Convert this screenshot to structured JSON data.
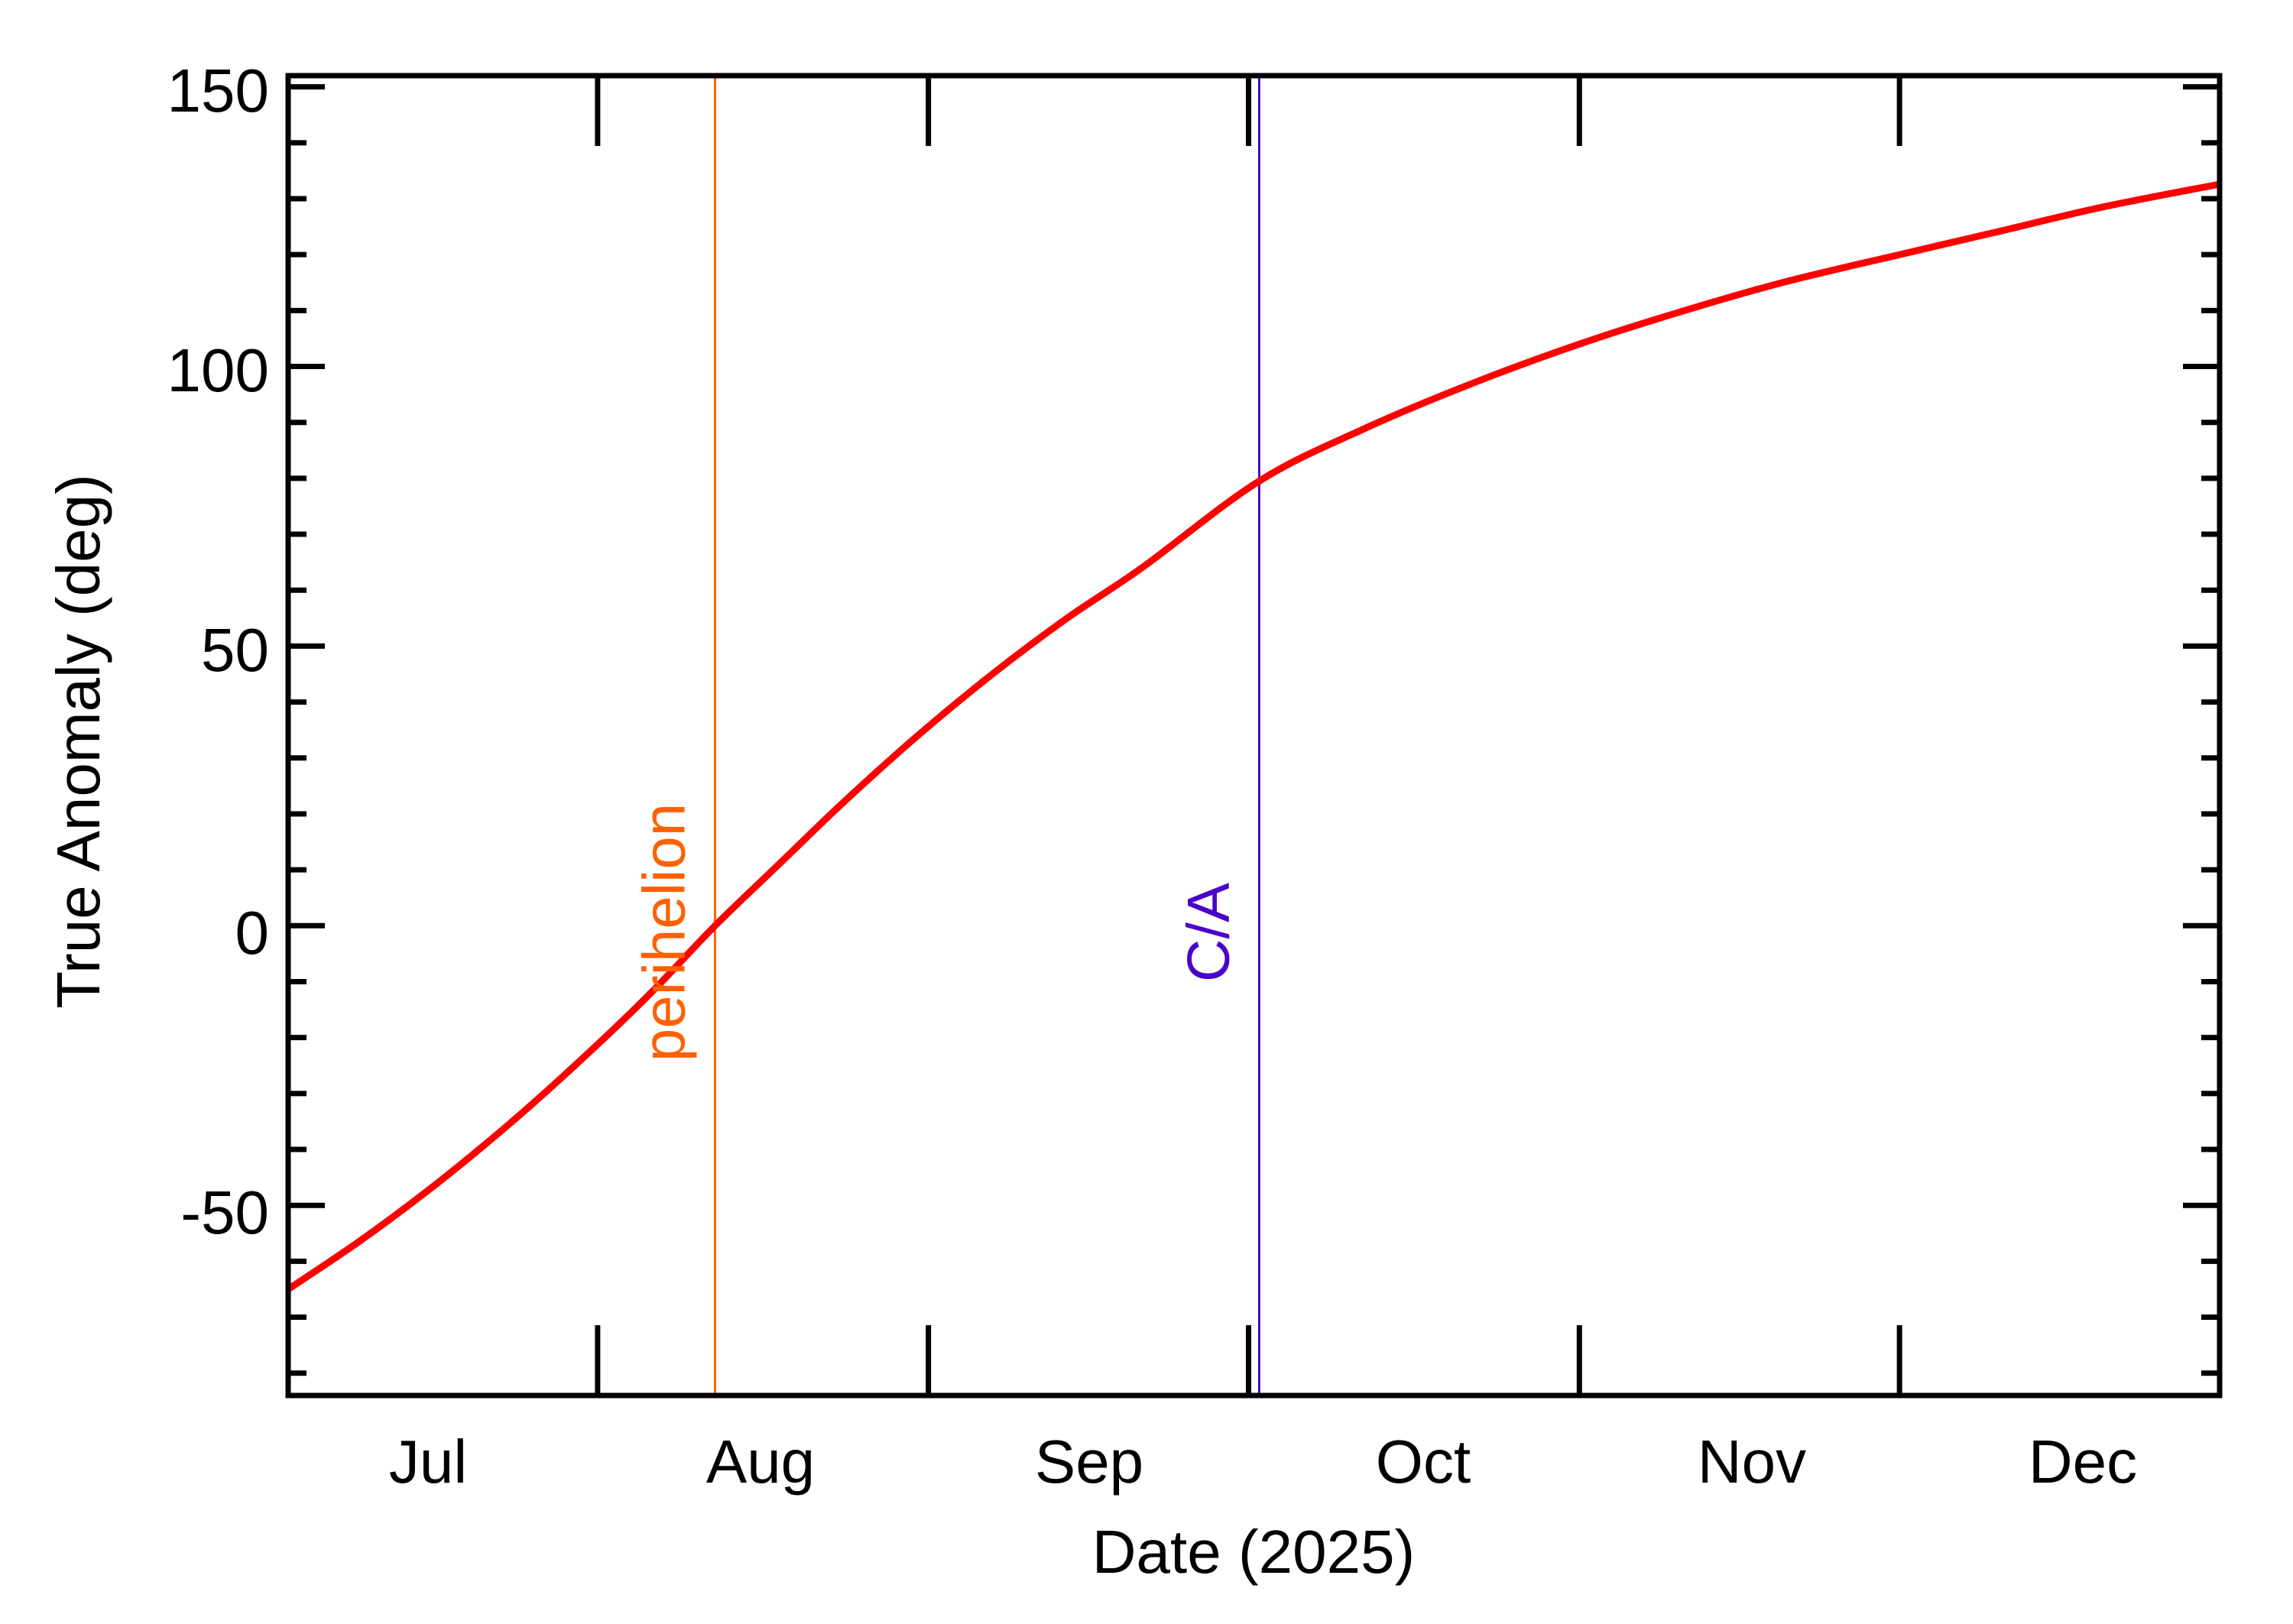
{
  "chart_data": {
    "type": "line",
    "title": "",
    "xlabel": "Date (2025)",
    "ylabel": "True Anomaly (deg)",
    "xlim": [
      "2025-07-03",
      "2025-12-31"
    ],
    "ylim": [
      -84,
      152
    ],
    "grid": false,
    "legend": null,
    "x_tick_labels": [
      "Jul",
      "Aug",
      "Sep",
      "Oct",
      "Nov",
      "Dec"
    ],
    "x_month_boundaries": [
      "2025-08-01",
      "2025-09-01",
      "2025-10-01",
      "2025-11-01",
      "2025-12-01"
    ],
    "y_ticks": [
      -50,
      0,
      50,
      100,
      150
    ],
    "y_tick_labels": [
      "-50",
      "0",
      "50",
      "100",
      "150"
    ],
    "y_minor_tick_step": 10,
    "series": [
      {
        "name": "True Anomaly",
        "color": "#ff0000",
        "x": [
          "2025-07-03",
          "2025-07-10",
          "2025-07-17",
          "2025-07-24",
          "2025-07-31",
          "2025-08-06",
          "2025-08-12",
          "2025-08-18",
          "2025-08-24",
          "2025-08-31",
          "2025-09-07",
          "2025-09-14",
          "2025-09-21",
          "2025-10-02",
          "2025-10-12",
          "2025-10-22",
          "2025-11-01",
          "2025-11-10",
          "2025-11-20",
          "2025-12-01",
          "2025-12-10",
          "2025-12-20",
          "2025-12-31"
        ],
        "values": [
          -65,
          -56,
          -46,
          -35,
          -23,
          -12,
          0,
          11,
          22,
          34,
          45,
          55,
          64,
          79.5,
          89,
          97,
          104,
          109.5,
          115,
          120,
          124,
          128.5,
          132.6
        ]
      }
    ],
    "annotations": [
      {
        "label": "perihelion",
        "date": "2025-08-12",
        "color": "#ff6000",
        "type": "vertical-line"
      },
      {
        "label": "C/A",
        "date": "2025-10-02",
        "color": "#4b00cc",
        "type": "vertical-line"
      }
    ]
  },
  "axes": {
    "xlabel": "Date (2025)",
    "ylabel": "True Anomaly (deg)",
    "x_labels": [
      "Jul",
      "Aug",
      "Sep",
      "Oct",
      "Nov",
      "Dec"
    ],
    "y_labels": [
      "150",
      "100",
      "50",
      "0",
      "-50"
    ]
  },
  "markers": {
    "perihelion": {
      "label": "perihelion",
      "color": "#ff6000"
    },
    "ca": {
      "label": "C/A",
      "color": "#4b00cc"
    }
  },
  "colors": {
    "curve": "#ff0000",
    "axes": "#000000",
    "background": "#ffffff"
  }
}
